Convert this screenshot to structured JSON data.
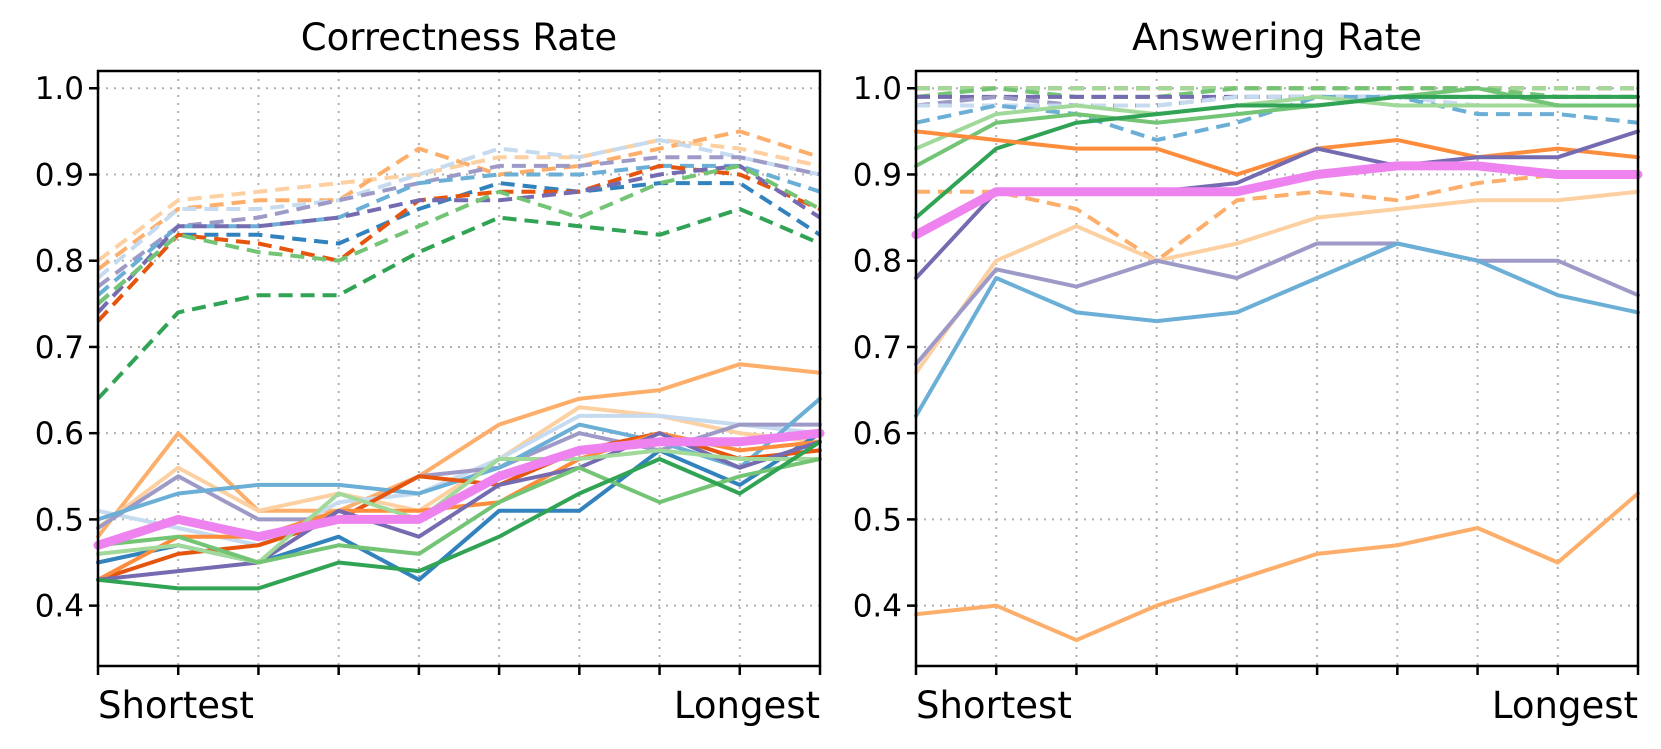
{
  "chart_data": [
    {
      "type": "line",
      "title": "Correctness Rate",
      "x_start_label": "Shortest",
      "x_end_label": "Longest",
      "x": [
        0,
        1,
        2,
        3,
        4,
        5,
        6,
        7,
        8,
        9
      ],
      "ylim": [
        0.33,
        1.02
      ],
      "yticks": [
        "0.4",
        "0.5",
        "0.6",
        "0.7",
        "0.8",
        "0.9",
        "1.0"
      ],
      "grid": true,
      "series": [
        {
          "color": "#fdd0a2",
          "dash": true,
          "values": [
            0.8,
            0.87,
            0.88,
            0.89,
            0.9,
            0.92,
            0.92,
            0.94,
            0.93,
            0.91
          ]
        },
        {
          "color": "#fdae6b",
          "dash": true,
          "values": [
            0.79,
            0.86,
            0.87,
            0.87,
            0.93,
            0.9,
            0.91,
            0.93,
            0.95,
            0.92
          ]
        },
        {
          "color": "#c6dbef",
          "dash": true,
          "values": [
            0.78,
            0.86,
            0.86,
            0.87,
            0.9,
            0.93,
            0.92,
            0.94,
            0.92,
            0.9
          ]
        },
        {
          "color": "#9e9ac8",
          "dash": true,
          "values": [
            0.77,
            0.84,
            0.85,
            0.87,
            0.89,
            0.91,
            0.91,
            0.92,
            0.92,
            0.9
          ]
        },
        {
          "color": "#6baed6",
          "dash": true,
          "values": [
            0.76,
            0.84,
            0.84,
            0.85,
            0.89,
            0.9,
            0.9,
            0.91,
            0.91,
            0.88
          ]
        },
        {
          "color": "#3182bd",
          "dash": true,
          "values": [
            0.75,
            0.83,
            0.83,
            0.82,
            0.86,
            0.89,
            0.88,
            0.89,
            0.89,
            0.83
          ]
        },
        {
          "color": "#e6550d",
          "dash": true,
          "values": [
            0.73,
            0.83,
            0.82,
            0.8,
            0.87,
            0.88,
            0.88,
            0.91,
            0.9,
            0.86
          ]
        },
        {
          "color": "#756bb1",
          "dash": true,
          "values": [
            0.74,
            0.84,
            0.84,
            0.85,
            0.87,
            0.87,
            0.88,
            0.9,
            0.91,
            0.85
          ]
        },
        {
          "color": "#74c476",
          "dash": true,
          "values": [
            0.75,
            0.83,
            0.81,
            0.8,
            0.84,
            0.88,
            0.85,
            0.89,
            0.91,
            0.86
          ]
        },
        {
          "color": "#31a354",
          "dash": true,
          "values": [
            0.64,
            0.74,
            0.76,
            0.76,
            0.81,
            0.85,
            0.84,
            0.83,
            0.86,
            0.82
          ]
        },
        {
          "color": "#fdae6b",
          "dash": false,
          "values": [
            0.48,
            0.6,
            0.51,
            0.51,
            0.55,
            0.61,
            0.64,
            0.65,
            0.68,
            0.67
          ]
        },
        {
          "color": "#fdd0a2",
          "dash": false,
          "values": [
            0.49,
            0.56,
            0.51,
            0.53,
            0.51,
            0.57,
            0.63,
            0.62,
            0.6,
            0.59
          ]
        },
        {
          "color": "#c6dbef",
          "dash": false,
          "values": [
            0.51,
            0.49,
            0.47,
            0.52,
            0.53,
            0.57,
            0.62,
            0.62,
            0.61,
            0.6
          ]
        },
        {
          "color": "#9e9ac8",
          "dash": false,
          "values": [
            0.49,
            0.55,
            0.5,
            0.5,
            0.55,
            0.56,
            0.6,
            0.58,
            0.61,
            0.61
          ]
        },
        {
          "color": "#6baed6",
          "dash": false,
          "values": [
            0.5,
            0.53,
            0.54,
            0.54,
            0.53,
            0.56,
            0.61,
            0.59,
            0.56,
            0.64
          ]
        },
        {
          "color": "#3182bd",
          "dash": false,
          "values": [
            0.45,
            0.47,
            0.45,
            0.48,
            0.43,
            0.51,
            0.51,
            0.58,
            0.54,
            0.6
          ]
        },
        {
          "color": "#e6550d",
          "dash": false,
          "values": [
            0.43,
            0.46,
            0.47,
            0.5,
            0.55,
            0.54,
            0.58,
            0.6,
            0.57,
            0.58
          ]
        },
        {
          "color": "#fd8d3c",
          "dash": false,
          "values": [
            0.43,
            0.48,
            0.48,
            0.51,
            0.51,
            0.52,
            0.57,
            0.6,
            0.58,
            0.59
          ]
        },
        {
          "color": "#756bb1",
          "dash": false,
          "values": [
            0.43,
            0.44,
            0.45,
            0.51,
            0.48,
            0.54,
            0.56,
            0.6,
            0.56,
            0.59
          ]
        },
        {
          "color": "#a1d99b",
          "dash": false,
          "values": [
            0.46,
            0.47,
            0.45,
            0.53,
            0.5,
            0.57,
            0.57,
            0.58,
            0.57,
            0.57
          ]
        },
        {
          "color": "#74c476",
          "dash": false,
          "values": [
            0.47,
            0.48,
            0.45,
            0.47,
            0.46,
            0.52,
            0.56,
            0.52,
            0.55,
            0.57
          ]
        },
        {
          "color": "#31a354",
          "dash": false,
          "values": [
            0.43,
            0.42,
            0.42,
            0.45,
            0.44,
            0.48,
            0.53,
            0.57,
            0.53,
            0.59
          ]
        },
        {
          "color": "#ee82ee",
          "dash": false,
          "thick": true,
          "values": [
            0.47,
            0.5,
            0.48,
            0.5,
            0.5,
            0.55,
            0.58,
            0.59,
            0.59,
            0.6
          ]
        }
      ]
    },
    {
      "type": "line",
      "title": "Answering Rate",
      "x_start_label": "Shortest",
      "x_end_label": "Longest",
      "x": [
        0,
        1,
        2,
        3,
        4,
        5,
        6,
        7,
        8,
        9
      ],
      "ylim": [
        0.33,
        1.02
      ],
      "yticks": [
        "0.4",
        "0.5",
        "0.6",
        "0.7",
        "0.8",
        "0.9",
        "1.0"
      ],
      "grid": true,
      "series": [
        {
          "color": "#e6550d",
          "dash": true,
          "values": [
            1.0,
            1.0,
            1.0,
            1.0,
            1.0,
            1.0,
            1.0,
            1.0,
            1.0,
            1.0
          ]
        },
        {
          "color": "#a1d99b",
          "dash": true,
          "values": [
            1.0,
            1.0,
            1.0,
            1.0,
            1.0,
            1.0,
            1.0,
            1.0,
            1.0,
            1.0
          ]
        },
        {
          "color": "#74c476",
          "dash": true,
          "values": [
            0.99,
            1.0,
            0.99,
            0.99,
            1.0,
            1.0,
            1.0,
            1.0,
            0.99,
            0.99
          ]
        },
        {
          "color": "#756bb1",
          "dash": true,
          "values": [
            0.99,
            0.99,
            0.99,
            0.99,
            0.99,
            0.99,
            0.99,
            0.99,
            0.99,
            0.99
          ]
        },
        {
          "color": "#9e9ac8",
          "dash": true,
          "values": [
            0.98,
            0.99,
            0.98,
            0.98,
            0.99,
            0.99,
            0.99,
            0.99,
            0.99,
            0.99
          ]
        },
        {
          "color": "#c6dbef",
          "dash": true,
          "values": [
            0.98,
            0.98,
            0.98,
            0.98,
            0.99,
            0.99,
            0.99,
            0.98,
            0.98,
            0.98
          ]
        },
        {
          "color": "#6baed6",
          "dash": true,
          "values": [
            0.96,
            0.98,
            0.97,
            0.94,
            0.96,
            0.99,
            0.99,
            0.97,
            0.97,
            0.96
          ]
        },
        {
          "color": "#fdae6b",
          "dash": true,
          "values": [
            0.88,
            0.88,
            0.86,
            0.8,
            0.87,
            0.88,
            0.87,
            0.89,
            0.9,
            0.9
          ]
        },
        {
          "color": "#a1d99b",
          "dash": false,
          "values": [
            0.93,
            0.97,
            0.98,
            0.97,
            0.98,
            0.99,
            0.98,
            0.98,
            0.98,
            0.98
          ]
        },
        {
          "color": "#74c476",
          "dash": false,
          "values": [
            0.91,
            0.96,
            0.97,
            0.96,
            0.97,
            0.98,
            0.99,
            1.0,
            0.98,
            0.98
          ]
        },
        {
          "color": "#31a354",
          "dash": false,
          "values": [
            0.85,
            0.93,
            0.96,
            0.97,
            0.98,
            0.98,
            0.99,
            0.99,
            0.99,
            0.99
          ]
        },
        {
          "color": "#fd8d3c",
          "dash": false,
          "values": [
            0.95,
            0.94,
            0.93,
            0.93,
            0.9,
            0.93,
            0.94,
            0.92,
            0.93,
            0.92
          ]
        },
        {
          "color": "#756bb1",
          "dash": false,
          "values": [
            0.78,
            0.88,
            0.88,
            0.88,
            0.89,
            0.93,
            0.91,
            0.92,
            0.92,
            0.95
          ]
        },
        {
          "color": "#fdd0a2",
          "dash": false,
          "values": [
            0.67,
            0.8,
            0.84,
            0.8,
            0.82,
            0.85,
            0.86,
            0.87,
            0.87,
            0.88
          ]
        },
        {
          "color": "#9e9ac8",
          "dash": false,
          "values": [
            0.68,
            0.79,
            0.77,
            0.8,
            0.78,
            0.82,
            0.82,
            0.8,
            0.8,
            0.76
          ]
        },
        {
          "color": "#6baed6",
          "dash": false,
          "values": [
            0.62,
            0.78,
            0.74,
            0.73,
            0.74,
            0.78,
            0.82,
            0.8,
            0.76,
            0.74
          ]
        },
        {
          "color": "#fdae6b",
          "dash": false,
          "values": [
            0.39,
            0.4,
            0.36,
            0.4,
            0.43,
            0.46,
            0.47,
            0.49,
            0.45,
            0.53
          ]
        },
        {
          "color": "#ee82ee",
          "dash": false,
          "thick": true,
          "values": [
            0.83,
            0.88,
            0.88,
            0.88,
            0.88,
            0.9,
            0.91,
            0.91,
            0.9,
            0.9
          ]
        }
      ]
    }
  ]
}
